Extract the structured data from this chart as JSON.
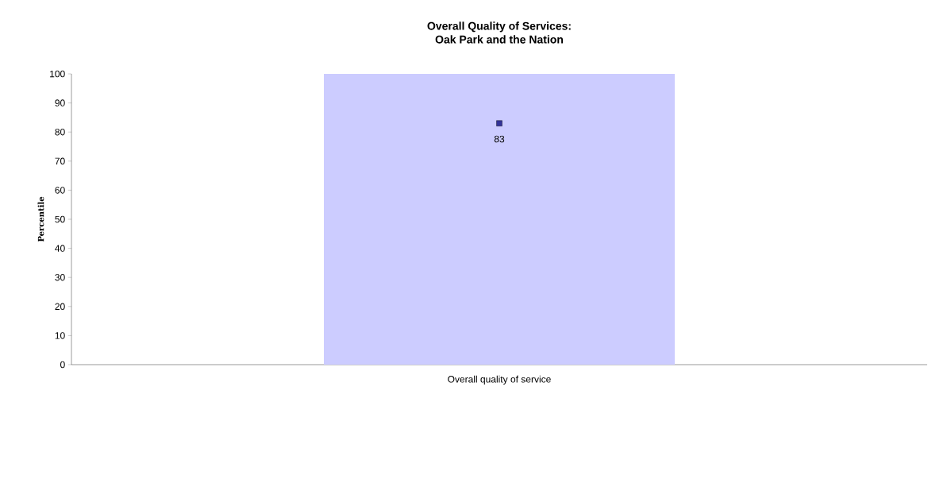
{
  "chart_data": {
    "type": "bar",
    "title": "Overall Quality of Services:\nOak Park and the Nation",
    "ylabel": "Percentile",
    "categories": [
      "Overall quality of service"
    ],
    "series": [
      {
        "type": "bar",
        "color": "#ccccff",
        "values": [
          100
        ]
      },
      {
        "type": "scatter",
        "color": "#333399",
        "values": [
          83
        ],
        "marker": "square",
        "value_labels": [
          "83"
        ]
      }
    ],
    "ylim": [
      0,
      100
    ],
    "yticks": [
      0,
      10,
      20,
      30,
      40,
      50,
      60,
      70,
      80,
      90,
      100
    ],
    "grid": false,
    "legend": false
  }
}
